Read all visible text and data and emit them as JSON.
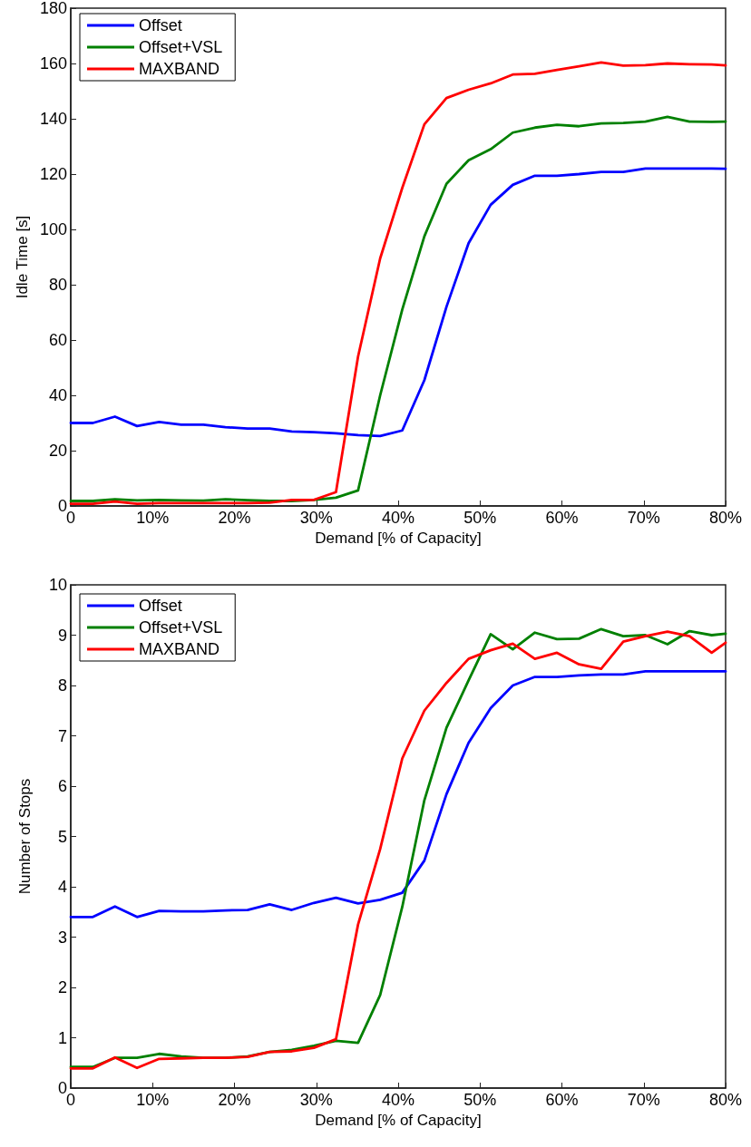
{
  "chart_data": [
    {
      "type": "line",
      "xlabel": "Demand [% of Capacity]",
      "ylabel": "Idle Time [s]",
      "x": [
        0,
        2.7,
        5.4,
        8.1,
        10.8,
        13.5,
        16.2,
        18.9,
        21.6,
        24.3,
        27,
        29.7,
        32.4,
        35.1,
        37.8,
        40.5,
        43.2,
        45.9,
        48.6,
        51.3,
        54,
        56.7,
        59.4,
        62.1,
        64.8,
        67.5,
        70.2,
        72.9,
        75.6,
        78.3,
        80
      ],
      "series": [
        {
          "name": "Offset",
          "color": "#0000ff",
          "values": [
            30,
            30,
            32.3,
            28.9,
            30.4,
            29.4,
            29.4,
            28.5,
            28,
            28,
            26.9,
            26.7,
            26.3,
            25.6,
            25.3,
            27.3,
            45.5,
            72,
            95,
            108.9,
            116.1,
            119.4,
            119.4,
            120,
            120.8,
            120.8,
            122,
            122,
            122,
            122,
            121.9
          ]
        },
        {
          "name": "Offset+VSL",
          "color": "#008000",
          "values": [
            1.8,
            1.8,
            2.4,
            2,
            2.2,
            2,
            1.9,
            2.4,
            2.1,
            1.8,
            1.8,
            2.2,
            3,
            5.6,
            40,
            71,
            97.5,
            116.5,
            125,
            129,
            135,
            136.8,
            137.8,
            137.3,
            138.3,
            138.5,
            139,
            140.7,
            139,
            138.9,
            139
          ]
        },
        {
          "name": "MAXBAND",
          "color": "#ff0000",
          "values": [
            0.8,
            0.8,
            1.6,
            0.8,
            1,
            1,
            1,
            1,
            1,
            1.2,
            2.2,
            2.2,
            5,
            54,
            89.5,
            115,
            138,
            147.5,
            150.5,
            152.8,
            156,
            156.3,
            157.7,
            159,
            160.4,
            159.2,
            159.4,
            160,
            159.7,
            159.6,
            159.3
          ]
        }
      ],
      "xlim": [
        0,
        80
      ],
      "xticks": [
        0,
        {
          "value": 10,
          "label": "10%"
        },
        {
          "value": 20,
          "label": "20%"
        },
        {
          "value": 30,
          "label": "30%"
        },
        {
          "value": 40,
          "label": "40%"
        },
        {
          "value": 50,
          "label": "50%"
        },
        {
          "value": 60,
          "label": "60%"
        },
        {
          "value": 70,
          "label": "70%"
        },
        {
          "value": 80,
          "label": "80%"
        }
      ],
      "ylim": [
        0,
        180
      ],
      "yticks": [
        0,
        20,
        40,
        60,
        80,
        100,
        120,
        140,
        160,
        180
      ],
      "grid": false,
      "legend": "top left",
      "marker": "none",
      "line_style": "solid"
    },
    {
      "type": "line",
      "xlabel": "Demand [% of Capacity]",
      "ylabel": "Number of Stops",
      "x": [
        0,
        2.7,
        5.4,
        8.1,
        10.8,
        13.5,
        16.2,
        18.9,
        21.6,
        24.3,
        27,
        29.7,
        32.4,
        35.1,
        37.8,
        40.5,
        43.2,
        45.9,
        48.6,
        51.3,
        54,
        56.7,
        59.4,
        62.1,
        64.8,
        67.5,
        70.2,
        72.9,
        75.6,
        78.3,
        80
      ],
      "series": [
        {
          "name": "Offset",
          "color": "#0000ff",
          "values": [
            3.4,
            3.4,
            3.61,
            3.4,
            3.52,
            3.51,
            3.51,
            3.53,
            3.54,
            3.65,
            3.54,
            3.68,
            3.78,
            3.67,
            3.74,
            3.88,
            4.52,
            5.84,
            6.86,
            7.55,
            8,
            8.17,
            8.17,
            8.2,
            8.22,
            8.22,
            8.28,
            8.28,
            8.28,
            8.28,
            8.28
          ]
        },
        {
          "name": "Offset+VSL",
          "color": "#008000",
          "values": [
            0.42,
            0.42,
            0.6,
            0.6,
            0.68,
            0.63,
            0.6,
            0.6,
            0.63,
            0.72,
            0.76,
            0.84,
            0.94,
            0.9,
            1.85,
            3.6,
            5.72,
            7.16,
            8.1,
            9.02,
            8.72,
            9.05,
            8.92,
            8.93,
            9.12,
            8.98,
            9,
            8.82,
            9.08,
            9,
            9.03
          ]
        },
        {
          "name": "MAXBAND",
          "color": "#ff0000",
          "values": [
            0.39,
            0.39,
            0.61,
            0.4,
            0.58,
            0.59,
            0.6,
            0.6,
            0.62,
            0.72,
            0.73,
            0.8,
            0.97,
            3.25,
            4.75,
            6.55,
            7.5,
            8.05,
            8.53,
            8.7,
            8.83,
            8.53,
            8.65,
            8.42,
            8.33,
            8.87,
            8.98,
            9.07,
            8.98,
            8.65,
            8.85
          ]
        }
      ],
      "xlim": [
        0,
        80
      ],
      "xticks": [
        0,
        {
          "value": 10,
          "label": "10%"
        },
        {
          "value": 20,
          "label": "20%"
        },
        {
          "value": 30,
          "label": "30%"
        },
        {
          "value": 40,
          "label": "40%"
        },
        {
          "value": 50,
          "label": "50%"
        },
        {
          "value": 60,
          "label": "60%"
        },
        {
          "value": 70,
          "label": "70%"
        },
        {
          "value": 80,
          "label": "80%"
        }
      ],
      "ylim": [
        0,
        10
      ],
      "yticks": [
        0,
        1,
        2,
        3,
        4,
        5,
        6,
        7,
        8,
        9,
        10
      ],
      "grid": false,
      "legend": "top left",
      "marker": "none",
      "line_style": "solid"
    }
  ]
}
